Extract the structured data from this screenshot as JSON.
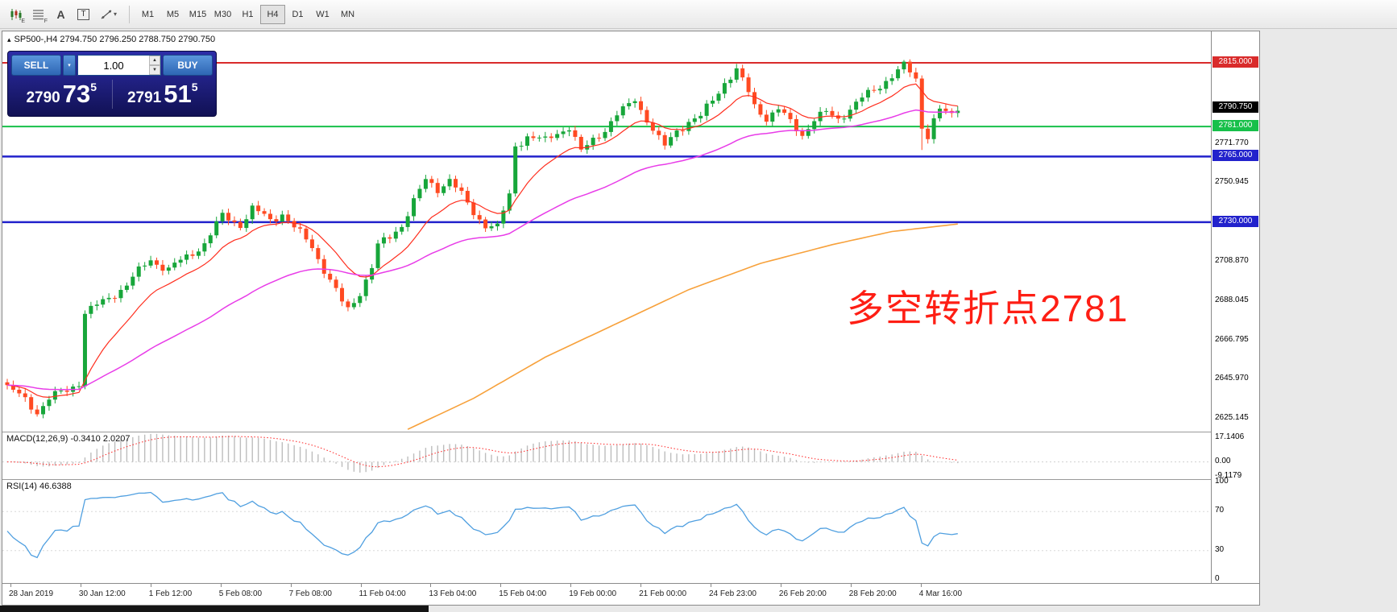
{
  "window": {
    "symbol_title": "SP500-,H4  2794.750 2796.250 2788.750 2790.750",
    "collapse_arrow": "▴"
  },
  "toolbar": {
    "icon_badge_1": "E",
    "icon_badge_2": "F",
    "letter_a": "A",
    "letter_t": "T",
    "dropdown_caret": "▾",
    "timeframes": [
      "M1",
      "M5",
      "M15",
      "M30",
      "H1",
      "H4",
      "D1",
      "W1",
      "MN"
    ],
    "active_timeframe": "H4"
  },
  "trade_panel": {
    "sell_label": "SELL",
    "buy_label": "BUY",
    "volume": "1.00",
    "caret_down": "▾",
    "spin_up": "▲",
    "spin_down": "▼",
    "sell_price": {
      "big": "2790",
      "mid": "73",
      "sup": "5"
    },
    "buy_price": {
      "big": "2791",
      "mid": "51",
      "sup": "5"
    }
  },
  "price_axis": {
    "badges": [
      {
        "text": "2815.000",
        "price": 2815.0,
        "bg": "#d92b2b",
        "fg": "#ffffff"
      },
      {
        "text": "2790.750",
        "price": 2790.75,
        "bg": "#000000",
        "fg": "#ffffff"
      },
      {
        "text": "2781.000",
        "price": 2781.0,
        "bg": "#17c04a",
        "fg": "#ffffff"
      },
      {
        "text": "2765.000",
        "price": 2765.0,
        "bg": "#2222cc",
        "fg": "#ffffff"
      },
      {
        "text": "2730.000",
        "price": 2730.0,
        "bg": "#2222cc",
        "fg": "#ffffff"
      }
    ],
    "ticks": [
      {
        "text": "2771.770",
        "price": 2771.77
      },
      {
        "text": "2750.945",
        "price": 2750.945
      },
      {
        "text": "2708.870",
        "price": 2708.87
      },
      {
        "text": "2688.045",
        "price": 2688.045
      },
      {
        "text": "2666.795",
        "price": 2666.795
      },
      {
        "text": "2645.970",
        "price": 2645.97
      },
      {
        "text": "2625.145",
        "price": 2625.145
      }
    ]
  },
  "hlines": [
    {
      "price": 2815.0,
      "color": "#d92b2b",
      "width": 2
    },
    {
      "price": 2781.0,
      "color": "#17c04a",
      "width": 2
    },
    {
      "price": 2765.0,
      "color": "#2222cc",
      "width": 2.5
    },
    {
      "price": 2730.0,
      "color": "#2222cc",
      "width": 2.5
    }
  ],
  "annotation": {
    "text": "多空转折点2781",
    "color": "#fe1e14"
  },
  "macd": {
    "label": "MACD(12,26,9) -0.3410 2.0207",
    "scale": [
      "17.1406",
      "0.00",
      "-9.1179"
    ]
  },
  "rsi": {
    "label": "RSI(14) 46.6388",
    "scale": [
      "100",
      "70",
      "30",
      "0"
    ]
  },
  "time_axis": [
    "28 Jan 2019",
    "30 Jan 12:00",
    "1 Feb 12:00",
    "5 Feb 08:00",
    "7 Feb 08:00",
    "11 Feb 04:00",
    "13 Feb 04:00",
    "15 Feb 04:00",
    "19 Feb 00:00",
    "21 Feb 00:00",
    "24 Feb 23:00",
    "26 Feb 20:00",
    "28 Feb 20:00",
    "4 Mar 16:00"
  ],
  "colors": {
    "candle_up": "#17a63a",
    "candle_down": "#ff4a22",
    "ma_fast_red": "#ff2e1e",
    "ma_mid_magenta": "#e83ce8",
    "ma_slow_orange": "#f7a13b",
    "macd_hist": "#bdbdbd",
    "macd_signal": "#ff2222",
    "rsi_line": "#4f9fe0",
    "level_dotted": "#d8d8d8"
  },
  "chart_data": {
    "type": "candlestick",
    "symbol": "SP500-",
    "timeframe": "H4",
    "last_ohlc": {
      "open": 2794.75,
      "high": 2796.25,
      "low": 2788.75,
      "close": 2790.75
    },
    "bars": 160,
    "y_range": [
      2618,
      2832
    ],
    "horizontal_levels": [
      2815.0,
      2781.0,
      2765.0,
      2730.0
    ],
    "price_anchors": [
      [
        0,
        2642
      ],
      [
        3,
        2635
      ],
      [
        5,
        2629
      ],
      [
        7,
        2636
      ],
      [
        10,
        2640
      ],
      [
        12,
        2645
      ],
      [
        13,
        2682
      ],
      [
        16,
        2687
      ],
      [
        20,
        2697
      ],
      [
        24,
        2710
      ],
      [
        27,
        2705
      ],
      [
        30,
        2711
      ],
      [
        33,
        2719
      ],
      [
        36,
        2733
      ],
      [
        39,
        2729
      ],
      [
        41,
        2737
      ],
      [
        44,
        2731
      ],
      [
        46,
        2735
      ],
      [
        48,
        2727
      ],
      [
        51,
        2717
      ],
      [
        54,
        2699
      ],
      [
        56,
        2687
      ],
      [
        57,
        2683
      ],
      [
        59,
        2693
      ],
      [
        61,
        2706
      ],
      [
        62,
        2717
      ],
      [
        64,
        2722
      ],
      [
        66,
        2729
      ],
      [
        68,
        2741
      ],
      [
        70,
        2752
      ],
      [
        72,
        2748
      ],
      [
        74,
        2753
      ],
      [
        76,
        2744
      ],
      [
        78,
        2735
      ],
      [
        80,
        2729
      ],
      [
        82,
        2727
      ],
      [
        84,
        2744
      ],
      [
        85,
        2771
      ],
      [
        87,
        2776
      ],
      [
        90,
        2773
      ],
      [
        92,
        2778
      ],
      [
        94,
        2781
      ],
      [
        96,
        2767
      ],
      [
        98,
        2774
      ],
      [
        100,
        2780
      ],
      [
        102,
        2787
      ],
      [
        104,
        2792
      ],
      [
        105,
        2796
      ],
      [
        107,
        2785
      ],
      [
        109,
        2774
      ],
      [
        110,
        2770
      ],
      [
        112,
        2779
      ],
      [
        114,
        2784
      ],
      [
        116,
        2786
      ],
      [
        118,
        2795
      ],
      [
        120,
        2805
      ],
      [
        122,
        2811
      ],
      [
        124,
        2799
      ],
      [
        125,
        2792
      ],
      [
        127,
        2786
      ],
      [
        129,
        2790
      ],
      [
        131,
        2783
      ],
      [
        133,
        2777
      ],
      [
        135,
        2785
      ],
      [
        137,
        2788
      ],
      [
        139,
        2785
      ],
      [
        141,
        2791
      ],
      [
        143,
        2796
      ],
      [
        145,
        2800
      ],
      [
        147,
        2806
      ],
      [
        149,
        2811
      ],
      [
        150,
        2813
      ],
      [
        152,
        2806
      ],
      [
        153,
        2781
      ],
      [
        154,
        2777
      ],
      [
        155,
        2785
      ],
      [
        156,
        2790
      ],
      [
        157,
        2788
      ],
      [
        158,
        2786
      ],
      [
        159,
        2790.75
      ]
    ],
    "overrides": [
      {
        "i": 150,
        "high": 2816.5
      },
      {
        "i": 153,
        "low": 2768.5
      }
    ],
    "orange_ma_anchors": [
      [
        67,
        2619.5
      ],
      [
        78,
        2636
      ],
      [
        90,
        2658
      ],
      [
        102,
        2676
      ],
      [
        114,
        2694
      ],
      [
        126,
        2708
      ],
      [
        138,
        2718
      ],
      [
        148,
        2725
      ],
      [
        159,
        2729
      ]
    ],
    "indicators": [
      {
        "name": "MACD",
        "params": "12,26,9",
        "values": [
          -0.341,
          2.0207
        ]
      },
      {
        "name": "RSI",
        "params": "14",
        "value": 46.6388
      }
    ]
  }
}
